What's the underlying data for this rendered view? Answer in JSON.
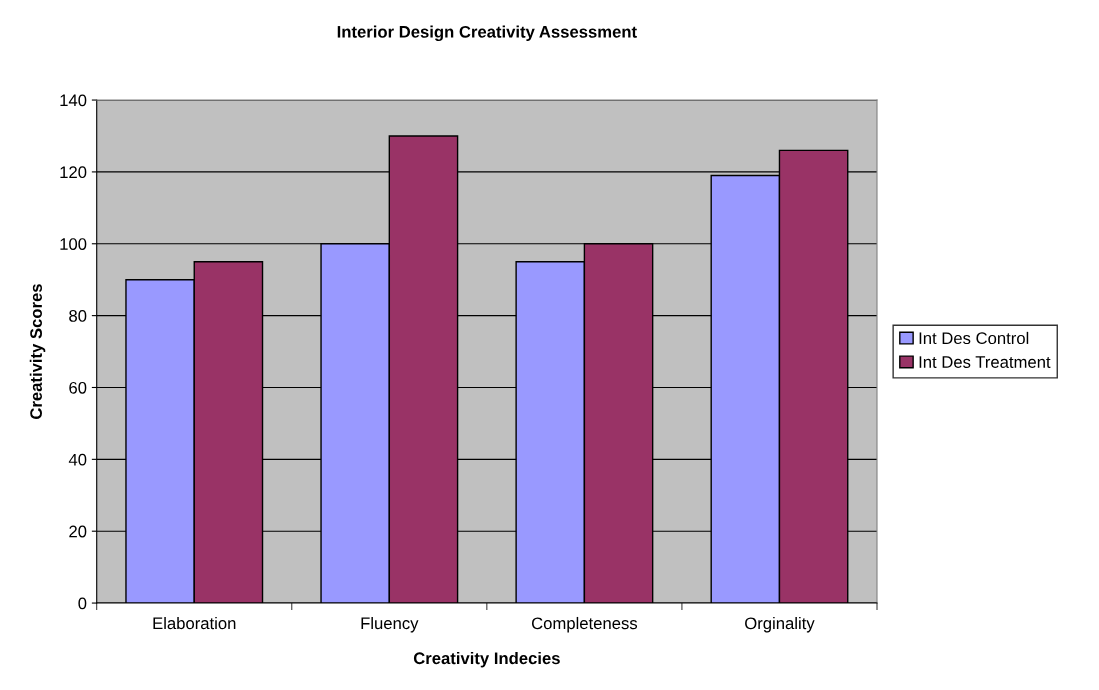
{
  "chart_data": {
    "type": "bar",
    "title": "Interior Design Creativity Assessment",
    "xlabel": "Creativity Indecies",
    "ylabel": "Creativity Scores",
    "categories": [
      "Elaboration",
      "Fluency",
      "Completeness",
      "Orginality"
    ],
    "series": [
      {
        "name": "Int Des Control",
        "color": "#9999ff",
        "values": [
          90,
          100,
          95,
          119
        ]
      },
      {
        "name": "Int Des Treatment",
        "color": "#993366",
        "values": [
          95,
          130,
          100,
          126
        ]
      }
    ],
    "ylim": [
      0,
      140
    ],
    "yticks": [
      0,
      20,
      40,
      60,
      80,
      100,
      120,
      140
    ],
    "grid": "y",
    "legend": "right"
  }
}
